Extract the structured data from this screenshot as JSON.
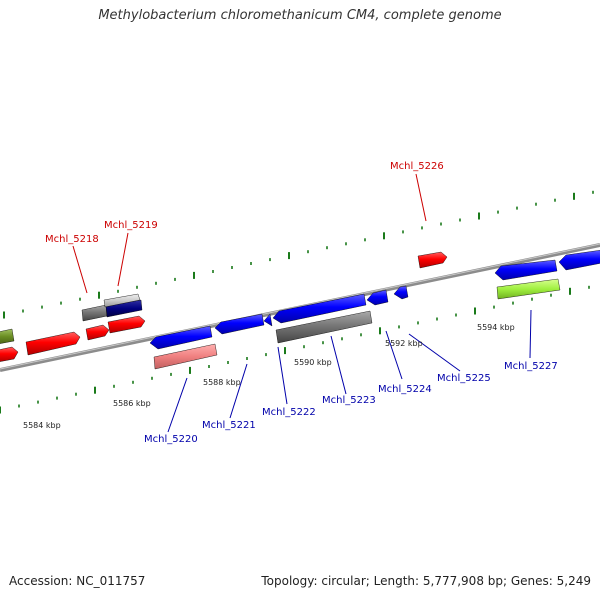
{
  "title": "Methylobacterium chloromethanicum CM4, complete genome",
  "footer": {
    "accession": "Accession: NC_011757",
    "summary": "Topology: circular; Length: 5,777,908 bp; Genes: 5,249"
  },
  "colors": {
    "forward_gene": "#ff0000",
    "reverse_gene": "#0000ff",
    "backbone": "#8c8c8c",
    "tick": "#1a7a1a",
    "forward_label": "#cc0000",
    "reverse_label": "#0000aa"
  },
  "scale_labels": [
    "5584 kbp",
    "5586 kbp",
    "5588 kbp",
    "5590 kbp",
    "5592 kbp",
    "5594 kbp"
  ],
  "forward_labels": [
    "Mchl_5218",
    "Mchl_5219",
    "Mchl_5226"
  ],
  "reverse_labels": [
    "Mchl_5220",
    "Mchl_5221",
    "Mchl_5222",
    "Mchl_5223",
    "Mchl_5224",
    "Mchl_5225",
    "Mchl_5227"
  ]
}
